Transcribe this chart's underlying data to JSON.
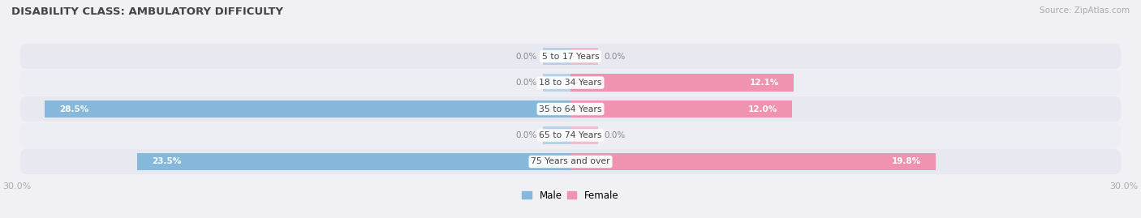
{
  "title": "DISABILITY CLASS: AMBULATORY DIFFICULTY",
  "source": "Source: ZipAtlas.com",
  "categories": [
    "75 Years and over",
    "65 to 74 Years",
    "35 to 64 Years",
    "18 to 34 Years",
    "5 to 17 Years"
  ],
  "male_values": [
    23.5,
    0.0,
    28.5,
    0.0,
    0.0
  ],
  "female_values": [
    19.8,
    0.0,
    12.0,
    12.1,
    0.0
  ],
  "xlim": 30.0,
  "male_color": "#85b8db",
  "female_color": "#f093b0",
  "row_bg_colors": [
    "#e8e8f0",
    "#ededf4"
  ],
  "fig_bg": "#f0f0f5",
  "title_color": "#444444",
  "tick_color": "#aaaaaa",
  "label_inside_color": "#ffffff",
  "label_outside_color": "#888888",
  "cat_label_color": "#444444",
  "source_color": "#aaaaaa",
  "bar_height": 0.65,
  "stub_size": 1.5
}
